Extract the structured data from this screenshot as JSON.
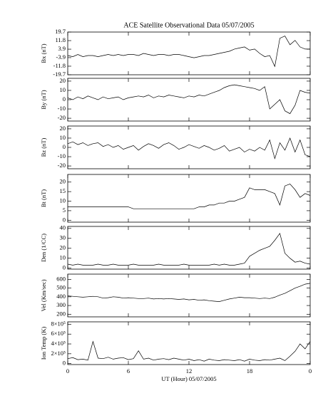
{
  "chart_data": [
    {
      "type": "line",
      "title": "ACE Satellite Observational Data   05/07/2005",
      "ylabel": "Bx (nT)",
      "x": [
        0,
        0.5,
        1,
        1.5,
        2,
        2.5,
        3,
        3.5,
        4,
        4.5,
        5,
        5.5,
        6,
        6.5,
        7,
        7.5,
        8,
        8.5,
        9,
        9.5,
        10,
        10.5,
        11,
        11.5,
        12,
        12.5,
        13,
        13.5,
        14,
        14.5,
        15,
        15.5,
        16,
        16.5,
        17,
        17.5,
        18,
        18.5,
        19,
        19.5,
        20,
        20.5,
        21,
        21.5,
        22,
        22.5,
        23,
        23.5,
        24
      ],
      "values": [
        -2,
        -3,
        -1,
        -3,
        -2,
        -2,
        -3,
        -2,
        -1,
        -2,
        -1,
        -2,
        -1,
        -1,
        -2,
        0,
        -1,
        -2,
        -1,
        -1,
        -2,
        -1,
        -1,
        -2,
        -3,
        -4,
        -3,
        -2,
        -2,
        -1,
        0,
        1,
        2,
        4,
        5,
        6,
        3,
        4,
        0,
        -3,
        -2,
        -12,
        14,
        16,
        8,
        12,
        6,
        4,
        4
      ],
      "xlim": [
        0,
        24
      ],
      "ylim": [
        -19.7,
        19.7
      ],
      "yticks": [
        19.7,
        11.8,
        3.9,
        -3.9,
        -11.8,
        -19.7
      ]
    },
    {
      "type": "line",
      "ylabel": "By (nT)",
      "x": [
        0,
        0.5,
        1,
        1.5,
        2,
        2.5,
        3,
        3.5,
        4,
        4.5,
        5,
        5.5,
        6,
        6.5,
        7,
        7.5,
        8,
        8.5,
        9,
        9.5,
        10,
        10.5,
        11,
        11.5,
        12,
        12.5,
        13,
        13.5,
        14,
        14.5,
        15,
        15.5,
        16,
        16.5,
        17,
        17.5,
        18,
        18.5,
        19,
        19.5,
        20,
        20.5,
        21,
        21.5,
        22,
        22.5,
        23,
        23.5,
        24
      ],
      "values": [
        2,
        0,
        3,
        1,
        4,
        2,
        0,
        3,
        1,
        2,
        3,
        0,
        2,
        3,
        4,
        3,
        5,
        2,
        4,
        3,
        5,
        4,
        3,
        2,
        4,
        3,
        5,
        4,
        6,
        8,
        10,
        13,
        15,
        16,
        15,
        14,
        13,
        12,
        10,
        14,
        -10,
        -5,
        0,
        -12,
        -15,
        -6,
        10,
        8,
        7
      ],
      "xlim": [
        0,
        24
      ],
      "ylim": [
        -23,
        23
      ],
      "yticks": [
        20,
        10,
        0,
        -10,
        -20
      ]
    },
    {
      "type": "line",
      "ylabel": "Bz (nT)",
      "x": [
        0,
        0.5,
        1,
        1.5,
        2,
        2.5,
        3,
        3.5,
        4,
        4.5,
        5,
        5.5,
        6,
        6.5,
        7,
        7.5,
        8,
        8.5,
        9,
        9.5,
        10,
        10.5,
        11,
        11.5,
        12,
        12.5,
        13,
        13.5,
        14,
        14.5,
        15,
        15.5,
        16,
        16.5,
        17,
        17.5,
        18,
        18.5,
        19,
        19.5,
        20,
        20.5,
        21,
        21.5,
        22,
        22.5,
        23,
        23.5,
        24
      ],
      "values": [
        4,
        6,
        3,
        5,
        2,
        4,
        5,
        1,
        3,
        0,
        2,
        -2,
        0,
        2,
        -3,
        1,
        4,
        2,
        -1,
        3,
        5,
        2,
        -2,
        0,
        3,
        1,
        -1,
        2,
        0,
        -3,
        -1,
        2,
        -4,
        -2,
        0,
        -5,
        -2,
        -4,
        0,
        -3,
        8,
        -12,
        5,
        -3,
        10,
        -5,
        8,
        -8,
        -10
      ],
      "xlim": [
        0,
        24
      ],
      "ylim": [
        -23,
        23
      ],
      "yticks": [
        20,
        10,
        0,
        -10,
        -20
      ]
    },
    {
      "type": "line",
      "ylabel": "Bt (nT)",
      "x": [
        0,
        0.5,
        1,
        1.5,
        2,
        2.5,
        3,
        3.5,
        4,
        4.5,
        5,
        5.5,
        6,
        6.5,
        7,
        7.5,
        8,
        8.5,
        9,
        9.5,
        10,
        10.5,
        11,
        11.5,
        12,
        12.5,
        13,
        13.5,
        14,
        14.5,
        15,
        15.5,
        16,
        16.5,
        17,
        17.5,
        18,
        18.5,
        19,
        19.5,
        20,
        20.5,
        21,
        21.5,
        22,
        22.5,
        23,
        23.5,
        24
      ],
      "values": [
        7,
        7,
        7,
        7,
        7,
        7,
        7,
        7,
        7,
        7,
        7,
        7,
        7,
        6,
        6,
        6,
        6,
        6,
        6,
        6,
        6,
        6,
        6,
        6,
        6,
        6,
        7,
        7,
        8,
        8,
        9,
        9,
        10,
        10,
        11,
        12,
        17,
        16,
        16,
        16,
        15,
        14,
        8,
        18,
        19,
        16,
        12,
        14,
        13
      ],
      "xlim": [
        0,
        24
      ],
      "ylim": [
        -1,
        24
      ],
      "yticks": [
        20,
        15,
        10,
        5,
        0
      ]
    },
    {
      "type": "line",
      "ylabel": "Den (1/CC)",
      "x": [
        0,
        0.5,
        1,
        1.5,
        2,
        2.5,
        3,
        3.5,
        4,
        4.5,
        5,
        5.5,
        6,
        6.5,
        7,
        7.5,
        8,
        8.5,
        9,
        9.5,
        10,
        10.5,
        11,
        11.5,
        12,
        12.5,
        13,
        13.5,
        14,
        14.5,
        15,
        15.5,
        16,
        16.5,
        17,
        17.5,
        18,
        18.5,
        19,
        19.5,
        20,
        20.5,
        21,
        21.5,
        22,
        22.5,
        23,
        23.5,
        24
      ],
      "values": [
        4,
        3,
        4,
        3,
        3,
        3,
        4,
        3,
        3,
        4,
        3,
        3,
        3,
        4,
        3,
        3,
        3,
        3,
        4,
        3,
        3,
        3,
        3,
        4,
        3,
        3,
        3,
        3,
        3,
        4,
        3,
        4,
        3,
        3,
        4,
        5,
        12,
        15,
        18,
        20,
        22,
        28,
        35,
        15,
        10,
        6,
        7,
        5,
        4
      ],
      "xlim": [
        0,
        24
      ],
      "ylim": [
        -1,
        42
      ],
      "yticks": [
        40,
        30,
        20,
        10,
        0
      ]
    },
    {
      "type": "line",
      "ylabel": "Vel (Km/sec)",
      "x": [
        0,
        0.5,
        1,
        1.5,
        2,
        2.5,
        3,
        3.5,
        4,
        4.5,
        5,
        5.5,
        6,
        6.5,
        7,
        7.5,
        8,
        8.5,
        9,
        9.5,
        10,
        10.5,
        11,
        11.5,
        12,
        12.5,
        13,
        13.5,
        14,
        14.5,
        15,
        15.5,
        16,
        16.5,
        17,
        17.5,
        18,
        18.5,
        19,
        19.5,
        20,
        20.5,
        21,
        21.5,
        22,
        22.5,
        23,
        23.5,
        24
      ],
      "values": [
        410,
        405,
        400,
        395,
        400,
        405,
        400,
        385,
        390,
        400,
        395,
        385,
        390,
        385,
        380,
        380,
        385,
        375,
        380,
        375,
        380,
        375,
        370,
        375,
        365,
        370,
        360,
        365,
        355,
        350,
        345,
        360,
        375,
        385,
        395,
        390,
        390,
        385,
        380,
        385,
        380,
        395,
        420,
        440,
        470,
        500,
        520,
        545,
        555
      ],
      "xlim": [
        0,
        24
      ],
      "ylim": [
        170,
        660
      ],
      "yticks": [
        600,
        500,
        400,
        300,
        200
      ]
    },
    {
      "type": "line",
      "ylabel": "Ion Temp (K)",
      "xlabel": "UT (Hour)  05/07/2005",
      "x": [
        0,
        0.5,
        1,
        1.5,
        2,
        2.5,
        3,
        3.5,
        4,
        4.5,
        5,
        5.5,
        6,
        6.5,
        7,
        7.5,
        8,
        8.5,
        9,
        9.5,
        10,
        10.5,
        11,
        11.5,
        12,
        12.5,
        13,
        13.5,
        14,
        14.5,
        15,
        15.5,
        16,
        16.5,
        17,
        17.5,
        18,
        18.5,
        19,
        19.5,
        20,
        20.5,
        21,
        21.5,
        22,
        22.5,
        23,
        23.5,
        24
      ],
      "values": [
        100000,
        120000,
        80000,
        90000,
        70000,
        450000,
        110000,
        100000,
        130000,
        90000,
        110000,
        120000,
        80000,
        100000,
        260000,
        90000,
        110000,
        70000,
        90000,
        100000,
        80000,
        110000,
        90000,
        70000,
        90000,
        60000,
        80000,
        50000,
        90000,
        70000,
        60000,
        80000,
        70000,
        60000,
        80000,
        50000,
        90000,
        70000,
        60000,
        80000,
        70000,
        90000,
        110000,
        60000,
        150000,
        250000,
        400000,
        300000,
        450000
      ],
      "xlim": [
        0,
        24
      ],
      "ylim": [
        -20000,
        850000
      ],
      "yticks": [
        {
          "value": 800000,
          "label": "8×10⁵"
        },
        {
          "value": 600000,
          "label": "6×10⁵"
        },
        {
          "value": 400000,
          "label": "4×10⁵"
        },
        {
          "value": 200000,
          "label": "2×10⁵"
        },
        0
      ],
      "xticks": [
        0,
        6,
        12,
        18,
        {
          "value": 24,
          "label": "0"
        }
      ]
    }
  ]
}
